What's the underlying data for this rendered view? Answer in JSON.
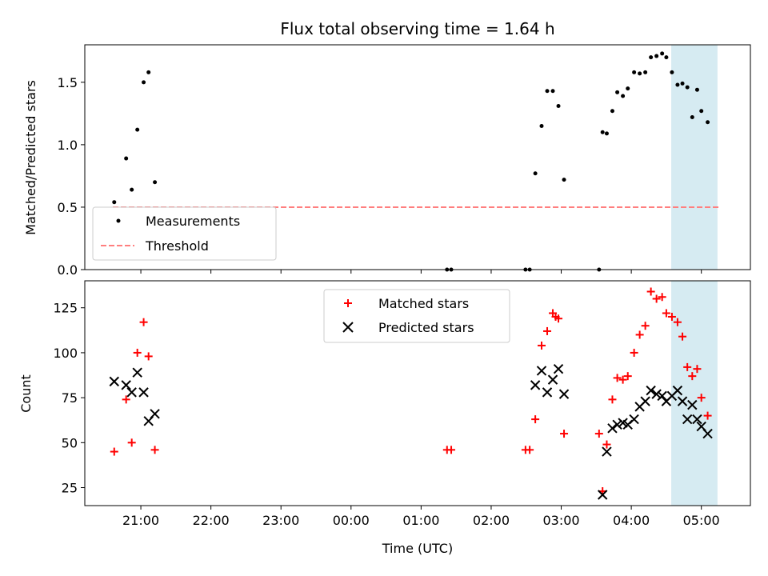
{
  "chart_data": {
    "type": "scatter",
    "title": "Flux total observing time = 1.64 h",
    "xlabel": "Time (UTC)",
    "x_ticks": [
      "21:00",
      "22:00",
      "23:00",
      "00:00",
      "01:00",
      "02:00",
      "03:00",
      "04:00",
      "05:00"
    ],
    "x_units": "hours since 21:00 UTC",
    "xlim": [
      -0.8,
      8.7
    ],
    "highlight_span": {
      "start": 7.57,
      "end": 8.23,
      "color": "#add8e6"
    },
    "panels": [
      {
        "id": "ratio",
        "ylabel": "Matched/Predicted stars",
        "ylim": [
          0.0,
          1.8
        ],
        "yticks": [
          "0.0",
          "0.5",
          "1.0",
          "1.5"
        ],
        "ytick_values": [
          0.0,
          0.5,
          1.0,
          1.5
        ],
        "threshold": {
          "name": "Threshold",
          "value": 0.5,
          "color": "#ff7f7f",
          "x_range": [
            -0.4,
            8.25
          ]
        },
        "series": [
          {
            "name": "Measurements",
            "color": "#000000",
            "marker": "dot",
            "points": [
              [
                -0.38,
                0.54
              ],
              [
                -0.21,
                0.89
              ],
              [
                -0.13,
                0.64
              ],
              [
                -0.05,
                1.12
              ],
              [
                0.04,
                1.5
              ],
              [
                0.11,
                1.58
              ],
              [
                0.2,
                0.7
              ],
              [
                4.37,
                0.0
              ],
              [
                4.43,
                0.0
              ],
              [
                5.49,
                0.0
              ],
              [
                5.55,
                0.0
              ],
              [
                5.63,
                0.77
              ],
              [
                5.72,
                1.15
              ],
              [
                5.8,
                1.43
              ],
              [
                5.88,
                1.43
              ],
              [
                5.96,
                1.31
              ],
              [
                6.04,
                0.72
              ],
              [
                6.54,
                0.0
              ],
              [
                6.59,
                1.1
              ],
              [
                6.65,
                1.09
              ],
              [
                6.73,
                1.27
              ],
              [
                6.8,
                1.42
              ],
              [
                6.88,
                1.39
              ],
              [
                6.95,
                1.45
              ],
              [
                7.04,
                1.58
              ],
              [
                7.12,
                1.57
              ],
              [
                7.2,
                1.58
              ],
              [
                7.28,
                1.7
              ],
              [
                7.36,
                1.71
              ],
              [
                7.44,
                1.73
              ],
              [
                7.5,
                1.7
              ],
              [
                7.58,
                1.58
              ],
              [
                7.66,
                1.48
              ],
              [
                7.73,
                1.49
              ],
              [
                7.8,
                1.46
              ],
              [
                7.87,
                1.22
              ],
              [
                7.94,
                1.44
              ],
              [
                8.0,
                1.27
              ],
              [
                8.09,
                1.18
              ]
            ]
          }
        ],
        "legend": {
          "position": "lower-left",
          "entries": [
            "Measurements",
            "Threshold"
          ]
        }
      },
      {
        "id": "counts",
        "ylabel": "Count",
        "ylim": [
          15,
          140
        ],
        "yticks": [
          "25",
          "50",
          "75",
          "100",
          "125"
        ],
        "ytick_values": [
          25,
          50,
          75,
          100,
          125
        ],
        "series": [
          {
            "name": "Matched stars",
            "color": "#ff0000",
            "marker": "plus",
            "points": [
              [
                -0.38,
                45
              ],
              [
                -0.21,
                74
              ],
              [
                -0.13,
                50
              ],
              [
                -0.05,
                100
              ],
              [
                0.04,
                117
              ],
              [
                0.11,
                98
              ],
              [
                0.2,
                46
              ],
              [
                4.37,
                46
              ],
              [
                4.43,
                46
              ],
              [
                5.49,
                46
              ],
              [
                5.55,
                46
              ],
              [
                5.63,
                63
              ],
              [
                5.72,
                104
              ],
              [
                5.8,
                112
              ],
              [
                5.88,
                122
              ],
              [
                5.92,
                120
              ],
              [
                5.96,
                119
              ],
              [
                6.04,
                55
              ],
              [
                6.54,
                55
              ],
              [
                6.59,
                23
              ],
              [
                6.65,
                49
              ],
              [
                6.73,
                74
              ],
              [
                6.8,
                86
              ],
              [
                6.88,
                85
              ],
              [
                6.95,
                87
              ],
              [
                7.04,
                100
              ],
              [
                7.12,
                110
              ],
              [
                7.2,
                115
              ],
              [
                7.28,
                134
              ],
              [
                7.36,
                130
              ],
              [
                7.44,
                131
              ],
              [
                7.5,
                122
              ],
              [
                7.58,
                120
              ],
              [
                7.66,
                117
              ],
              [
                7.73,
                109
              ],
              [
                7.8,
                92
              ],
              [
                7.87,
                87
              ],
              [
                7.94,
                91
              ],
              [
                8.0,
                75
              ],
              [
                8.09,
                65
              ]
            ]
          },
          {
            "name": "Predicted stars",
            "color": "#000000",
            "marker": "x",
            "points": [
              [
                -0.38,
                84
              ],
              [
                -0.21,
                82
              ],
              [
                -0.13,
                78
              ],
              [
                -0.05,
                89
              ],
              [
                0.04,
                78
              ],
              [
                0.11,
                62
              ],
              [
                0.2,
                66
              ],
              [
                5.63,
                82
              ],
              [
                5.72,
                90
              ],
              [
                5.8,
                78
              ],
              [
                5.88,
                85
              ],
              [
                5.96,
                91
              ],
              [
                6.04,
                77
              ],
              [
                6.59,
                21
              ],
              [
                6.65,
                45
              ],
              [
                6.73,
                58
              ],
              [
                6.8,
                60
              ],
              [
                6.88,
                61
              ],
              [
                6.95,
                60
              ],
              [
                7.04,
                63
              ],
              [
                7.12,
                70
              ],
              [
                7.2,
                73
              ],
              [
                7.28,
                79
              ],
              [
                7.36,
                77
              ],
              [
                7.44,
                76
              ],
              [
                7.5,
                73
              ],
              [
                7.58,
                76
              ],
              [
                7.66,
                79
              ],
              [
                7.73,
                73
              ],
              [
                7.8,
                63
              ],
              [
                7.87,
                71
              ],
              [
                7.94,
                63
              ],
              [
                8.0,
                59
              ],
              [
                8.09,
                55
              ]
            ]
          }
        ],
        "legend": {
          "position": "upper-center",
          "entries": [
            "Matched stars",
            "Predicted stars"
          ]
        }
      }
    ]
  }
}
